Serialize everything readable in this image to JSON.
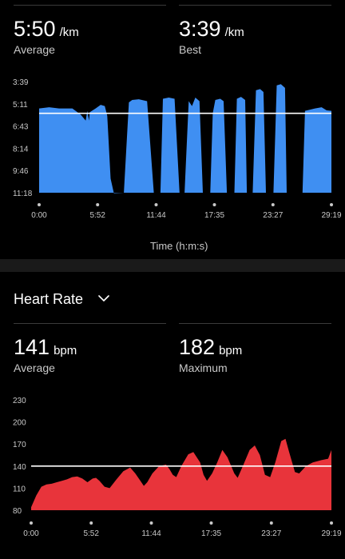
{
  "pace": {
    "average": {
      "value": "5:50",
      "unit": "/km",
      "label": "Average"
    },
    "best": {
      "value": "3:39",
      "unit": "/km",
      "label": "Best"
    }
  },
  "heart_rate": {
    "title": "Heart Rate",
    "dropdown_icon": "chevron-down-icon",
    "average": {
      "value": "141",
      "unit": "bpm",
      "label": "Average"
    },
    "maximum": {
      "value": "182",
      "unit": "bpm",
      "label": "Maximum"
    }
  },
  "colors": {
    "background": "#000000",
    "pace_fill": "#3f8ff2",
    "hr_fill": "#e8343b",
    "average_line": "#ffffff",
    "divider": "#3a3a3a",
    "label_gray": "#c9c9c9"
  },
  "chart_data": [
    {
      "type": "area",
      "name": "pace",
      "xlabel": "Time (h:m:s)",
      "ylabel": "",
      "y_tick_labels": [
        "3:39",
        "5:11",
        "6:43",
        "8:14",
        "9:46",
        "11:18"
      ],
      "y_ticks_seconds": [
        219,
        311,
        403,
        494,
        586,
        678
      ],
      "ylim_seconds": [
        219,
        678
      ],
      "y_inverted": true,
      "x_tick_labels": [
        "0:00",
        "5:52",
        "11:44",
        "17:35",
        "23:27",
        "29:19"
      ],
      "x_ticks_seconds": [
        0,
        352,
        704,
        1055,
        1407,
        1759
      ],
      "xlim_seconds": [
        0,
        1759
      ],
      "average_line_seconds": 350,
      "grid": false,
      "series": [
        {
          "values": [
            [
              0,
              330
            ],
            [
              60,
              325
            ],
            [
              120,
              330
            ],
            [
              200,
              330
            ],
            [
              250,
              355
            ],
            [
              280,
              380
            ],
            [
              290,
              340
            ],
            [
              300,
              380
            ],
            [
              305,
              345
            ],
            [
              340,
              330
            ],
            [
              370,
              315
            ],
            [
              395,
              320
            ],
            [
              410,
              360
            ],
            [
              430,
              620
            ],
            [
              450,
              680
            ],
            [
              510,
              678
            ],
            [
              540,
              305
            ],
            [
              560,
              295
            ],
            [
              600,
              292
            ],
            [
              650,
              300
            ],
            [
              690,
              678
            ],
            [
              730,
              678
            ],
            [
              745,
              290
            ],
            [
              780,
              285
            ],
            [
              815,
              290
            ],
            [
              845,
              678
            ],
            [
              875,
              678
            ],
            [
              900,
              300
            ],
            [
              920,
              320
            ],
            [
              940,
              285
            ],
            [
              965,
              300
            ],
            [
              985,
              678
            ],
            [
              1015,
              678
            ],
            [
              1030,
              678
            ],
            [
              1045,
              350
            ],
            [
              1060,
              295
            ],
            [
              1090,
              290
            ],
            [
              1110,
              300
            ],
            [
              1130,
              678
            ],
            [
              1165,
              678
            ],
            [
              1175,
              678
            ],
            [
              1190,
              290
            ],
            [
              1215,
              282
            ],
            [
              1240,
              295
            ],
            [
              1250,
              678
            ],
            [
              1285,
              678
            ],
            [
              1305,
              255
            ],
            [
              1330,
              250
            ],
            [
              1350,
              262
            ],
            [
              1365,
              678
            ],
            [
              1405,
              678
            ],
            [
              1410,
              678
            ],
            [
              1430,
              235
            ],
            [
              1455,
              230
            ],
            [
              1480,
              245
            ],
            [
              1490,
              678
            ],
            [
              1510,
              678
            ],
            [
              1530,
              678
            ],
            [
              1570,
              678
            ],
            [
              1585,
              678
            ],
            [
              1600,
              340
            ],
            [
              1630,
              335
            ],
            [
              1660,
              330
            ],
            [
              1700,
              325
            ],
            [
              1730,
              338
            ],
            [
              1759,
              340
            ]
          ]
        }
      ]
    },
    {
      "type": "area",
      "name": "heart_rate",
      "xlabel": "",
      "ylabel": "",
      "y_ticks": [
        80,
        110,
        140,
        170,
        200,
        230
      ],
      "ylim": [
        80,
        230
      ],
      "x_tick_labels": [
        "0:00",
        "5:52",
        "11:44",
        "17:35",
        "23:27",
        "29:19"
      ],
      "x_ticks_seconds": [
        0,
        352,
        704,
        1055,
        1407,
        1759
      ],
      "xlim_seconds": [
        0,
        1759
      ],
      "average_line": 140,
      "grid": false,
      "series": [
        {
          "values": [
            [
              0,
              84
            ],
            [
              30,
              100
            ],
            [
              60,
              112
            ],
            [
              90,
              115
            ],
            [
              120,
              116
            ],
            [
              150,
              118
            ],
            [
              180,
              120
            ],
            [
              210,
              122
            ],
            [
              240,
              125
            ],
            [
              270,
              126
            ],
            [
              300,
              123
            ],
            [
              330,
              118
            ],
            [
              360,
              123
            ],
            [
              380,
              124
            ],
            [
              400,
              120
            ],
            [
              430,
              112
            ],
            [
              460,
              110
            ],
            [
              500,
              122
            ],
            [
              540,
              133
            ],
            [
              580,
              138
            ],
            [
              610,
              130
            ],
            [
              640,
              120
            ],
            [
              660,
              113
            ],
            [
              680,
              118
            ],
            [
              710,
              130
            ],
            [
              750,
              140
            ],
            [
              790,
              142
            ],
            [
              810,
              136
            ],
            [
              830,
              128
            ],
            [
              850,
              125
            ],
            [
              880,
              140
            ],
            [
              920,
              156
            ],
            [
              950,
              159
            ],
            [
              990,
              145
            ],
            [
              1010,
              128
            ],
            [
              1030,
              120
            ],
            [
              1060,
              130
            ],
            [
              1090,
              145
            ],
            [
              1120,
              162
            ],
            [
              1150,
              152
            ],
            [
              1190,
              130
            ],
            [
              1210,
              124
            ],
            [
              1240,
              140
            ],
            [
              1280,
              162
            ],
            [
              1310,
              168
            ],
            [
              1340,
              155
            ],
            [
              1370,
              128
            ],
            [
              1400,
              125
            ],
            [
              1430,
              145
            ],
            [
              1465,
              174
            ],
            [
              1490,
              177
            ],
            [
              1510,
              160
            ],
            [
              1545,
              132
            ],
            [
              1570,
              130
            ],
            [
              1610,
              140
            ],
            [
              1650,
              145
            ],
            [
              1700,
              148
            ],
            [
              1740,
              150
            ],
            [
              1759,
              162
            ]
          ]
        }
      ]
    }
  ]
}
